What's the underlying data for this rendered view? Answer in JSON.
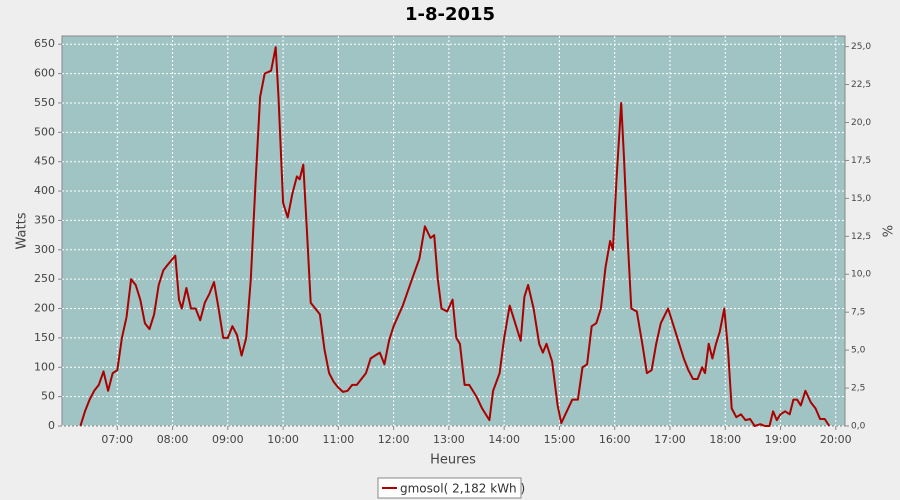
{
  "chart_data": {
    "type": "line",
    "title": "1-8-2015",
    "xlabel": "Heures",
    "ylabel": "Watts",
    "y2label": "%",
    "x": [
      "06:20",
      "06:25",
      "06:30",
      "06:35",
      "06:40",
      "06:45",
      "06:50",
      "06:55",
      "07:00",
      "07:05",
      "07:10",
      "07:15",
      "07:20",
      "07:25",
      "07:30",
      "07:35",
      "07:40",
      "07:45",
      "07:50",
      "07:55",
      "08:03",
      "08:07",
      "08:10",
      "08:15",
      "08:20",
      "08:25",
      "08:30",
      "08:35",
      "08:40",
      "08:45",
      "08:50",
      "08:55",
      "09:00",
      "09:05",
      "09:10",
      "09:15",
      "09:20",
      "09:25",
      "09:30",
      "09:35",
      "09:40",
      "09:47",
      "09:52",
      "09:55",
      "10:00",
      "10:05",
      "10:10",
      "10:15",
      "10:18",
      "10:22",
      "10:26",
      "10:30",
      "10:35",
      "10:40",
      "10:45",
      "10:50",
      "10:55",
      "11:00",
      "11:05",
      "11:10",
      "11:15",
      "11:20",
      "11:25",
      "11:30",
      "11:35",
      "11:40",
      "11:45",
      "11:50",
      "11:55",
      "12:00",
      "12:10",
      "12:20",
      "12:28",
      "12:34",
      "12:40",
      "12:44",
      "12:48",
      "12:52",
      "12:58",
      "13:04",
      "13:08",
      "13:12",
      "13:17",
      "13:22",
      "13:30",
      "13:36",
      "13:44",
      "13:48",
      "13:55",
      "14:00",
      "14:06",
      "14:12",
      "14:18",
      "14:22",
      "14:26",
      "14:32",
      "14:38",
      "14:42",
      "14:46",
      "14:52",
      "14:58",
      "15:02",
      "15:08",
      "15:14",
      "15:20",
      "15:25",
      "15:30",
      "15:35",
      "15:40",
      "15:45",
      "15:50",
      "15:55",
      "15:58",
      "16:02",
      "16:07",
      "16:10",
      "16:14",
      "16:18",
      "16:24",
      "16:30",
      "16:35",
      "16:40",
      "16:45",
      "16:50",
      "16:58",
      "17:05",
      "17:10",
      "17:15",
      "17:20",
      "17:25",
      "17:30",
      "17:35",
      "17:38",
      "17:42",
      "17:46",
      "17:50",
      "17:54",
      "17:59",
      "18:03",
      "18:07",
      "18:12",
      "18:17",
      "18:22",
      "18:27",
      "18:32",
      "18:38",
      "18:43",
      "18:48",
      "18:52",
      "18:56",
      "19:00",
      "19:05",
      "19:10",
      "19:14",
      "19:18",
      "19:22",
      "19:27",
      "19:33",
      "19:38",
      "19:43",
      "19:48",
      "19:53"
    ],
    "series": [
      {
        "name": "gmosol( 2,182 kWh )",
        "color": "#aa0000",
        "values": [
          0,
          25,
          45,
          60,
          70,
          93,
          60,
          90,
          95,
          150,
          185,
          250,
          240,
          215,
          175,
          165,
          190,
          240,
          265,
          275,
          290,
          215,
          200,
          235,
          200,
          200,
          180,
          210,
          225,
          245,
          200,
          150,
          150,
          170,
          155,
          120,
          150,
          250,
          410,
          560,
          600,
          605,
          645,
          560,
          380,
          355,
          395,
          425,
          420,
          445,
          330,
          210,
          200,
          190,
          130,
          90,
          75,
          65,
          58,
          60,
          70,
          70,
          80,
          90,
          115,
          120,
          125,
          105,
          145,
          170,
          205,
          250,
          285,
          340,
          320,
          325,
          250,
          200,
          195,
          215,
          150,
          140,
          70,
          70,
          50,
          30,
          10,
          60,
          90,
          150,
          205,
          175,
          145,
          220,
          240,
          200,
          140,
          125,
          140,
          110,
          35,
          5,
          25,
          45,
          45,
          100,
          105,
          170,
          175,
          200,
          270,
          315,
          300,
          420,
          550,
          460,
          320,
          200,
          195,
          140,
          90,
          95,
          140,
          175,
          200,
          165,
          140,
          115,
          95,
          80,
          80,
          100,
          90,
          140,
          115,
          140,
          160,
          200,
          130,
          30,
          15,
          20,
          10,
          12,
          0,
          3,
          0,
          0,
          25,
          10,
          20,
          25,
          20,
          45,
          45,
          35,
          60,
          40,
          30,
          12,
          12,
          0
        ]
      }
    ],
    "xlim": [
      "06:00",
      "20:10"
    ],
    "xticks": [
      "07:00",
      "08:00",
      "09:00",
      "10:00",
      "11:00",
      "12:00",
      "13:00",
      "14:00",
      "15:00",
      "16:00",
      "17:00",
      "18:00",
      "19:00",
      "20:00"
    ],
    "ylim": [
      0,
      664
    ],
    "yticks": [
      0,
      50,
      100,
      150,
      200,
      250,
      300,
      350,
      400,
      450,
      500,
      550,
      600,
      650
    ],
    "y2lim": [
      0,
      25.7
    ],
    "y2ticks": [
      {
        "value": 0,
        "label": "0,0"
      },
      {
        "value": 2.5,
        "label": "2,5"
      },
      {
        "value": 5,
        "label": "5,0"
      },
      {
        "value": 7.5,
        "label": "7,5"
      },
      {
        "value": 10,
        "label": "10,0"
      },
      {
        "value": 12.5,
        "label": "12,5"
      },
      {
        "value": 15,
        "label": "15,0"
      },
      {
        "value": 17.5,
        "label": "17,5"
      },
      {
        "value": 20,
        "label": "20,0"
      },
      {
        "value": 22.5,
        "label": "22,5"
      },
      {
        "value": 25,
        "label": "25,0"
      }
    ],
    "grid": true,
    "plot_background": "#a0c4c3",
    "legend": "bottom"
  }
}
